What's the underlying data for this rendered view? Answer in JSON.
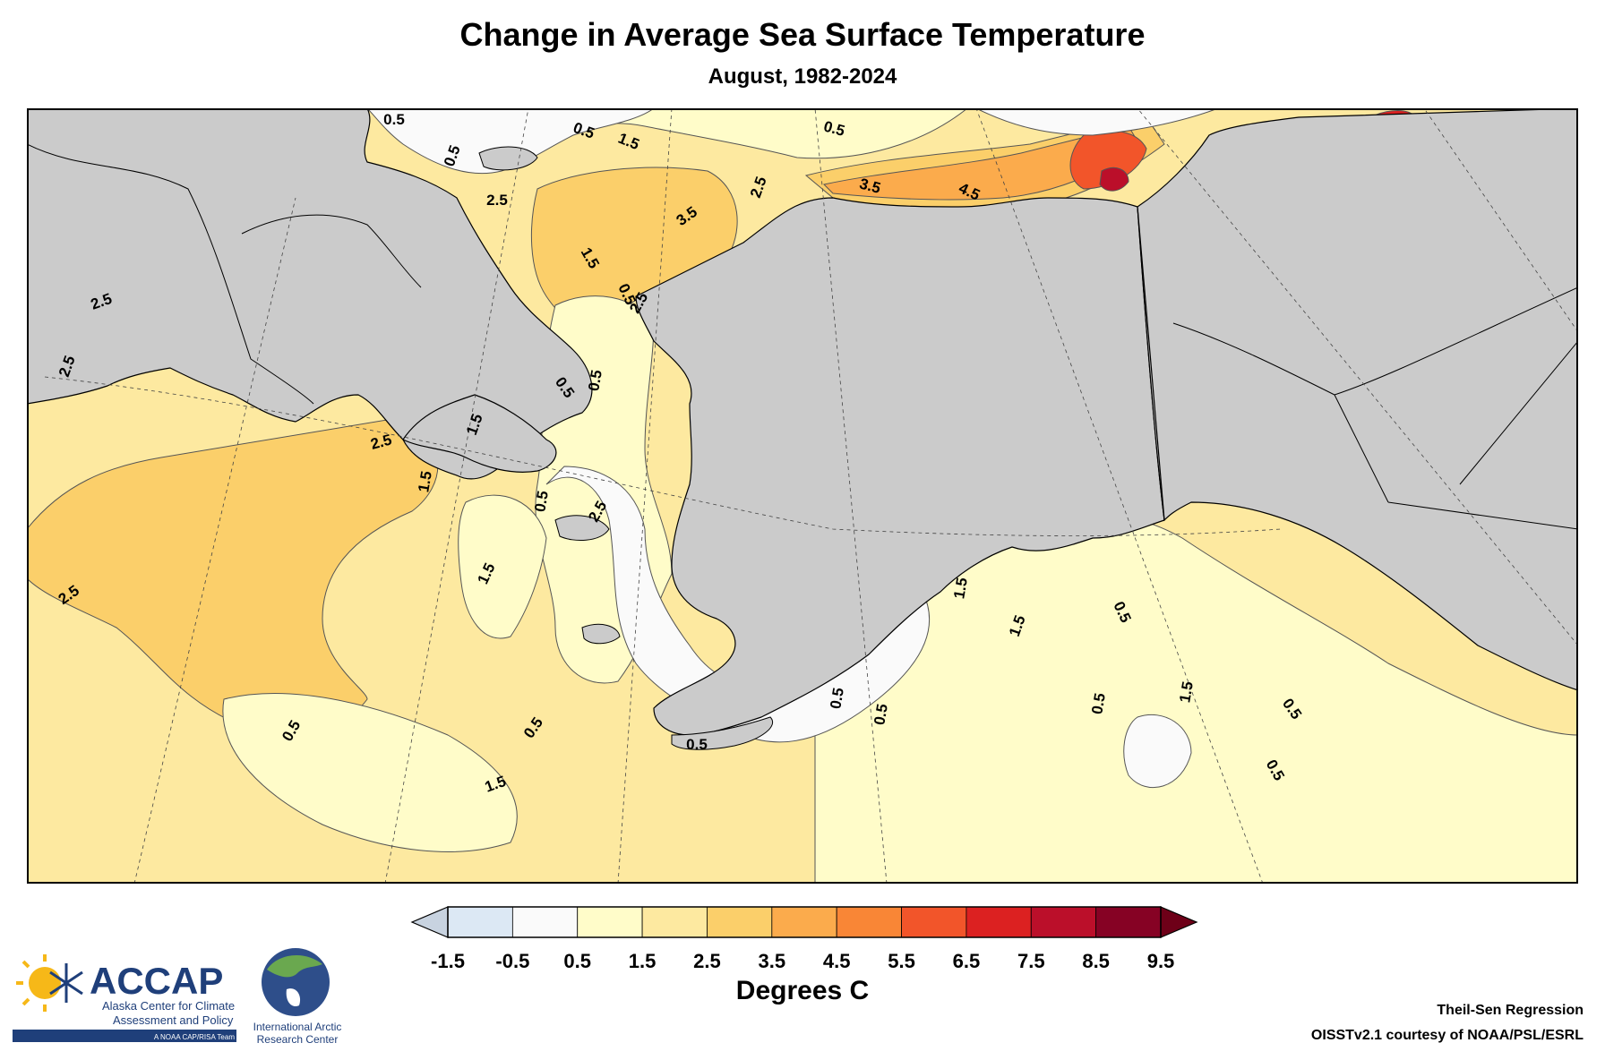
{
  "title": "Change in Average Sea Surface Temperature",
  "subtitle": "August, 1982-2024",
  "colorbar": {
    "unit": "Degrees C",
    "ticks": [
      "-1.5",
      "-0.5",
      "0.5",
      "1.5",
      "2.5",
      "3.5",
      "4.5",
      "5.5",
      "6.5",
      "7.5",
      "8.5",
      "9.5"
    ],
    "colors": [
      "#dce8f4",
      "#fafafa",
      "#fffcc9",
      "#fde9a0",
      "#fbcf6a",
      "#fbab4c",
      "#f98636",
      "#f2552a",
      "#dc2121",
      "#bb0f2a",
      "#860224"
    ],
    "under_color": "#c8d3e0",
    "over_color": "#6e0018"
  },
  "map": {
    "land_color": "#cbcbcb",
    "contour_labels": [
      "0.5",
      "0.5",
      "1.5",
      "0.5",
      "0.5",
      "2.5",
      "2.5",
      "3.5",
      "3.5",
      "2.5",
      "4.5",
      "2.5",
      "1.5",
      "0.5",
      "2.5",
      "2.5",
      "1.5",
      "1.5",
      "0.5",
      "0.5",
      "2.5",
      "0.5",
      "1.5",
      "2.5",
      "1.5",
      "1.5",
      "0.5",
      "0.5",
      "1.5",
      "0.5",
      "0.5",
      "0.5",
      "0.5",
      "0.5",
      "0.5",
      "1.5",
      "0.5"
    ]
  },
  "credits": {
    "method": "Theil-Sen Regression",
    "source": "OISSTv2.1 courtesy of NOAA/PSL/ESRL"
  },
  "logos": {
    "accap_name": "ACCAP",
    "accap_line1": "Alaska Center for Climate",
    "accap_line2": "Assessment and Policy",
    "accap_tag": "A NOAA CAP/RISA Team",
    "iarc_line1": "International Arctic",
    "iarc_line2": "Research Center"
  }
}
